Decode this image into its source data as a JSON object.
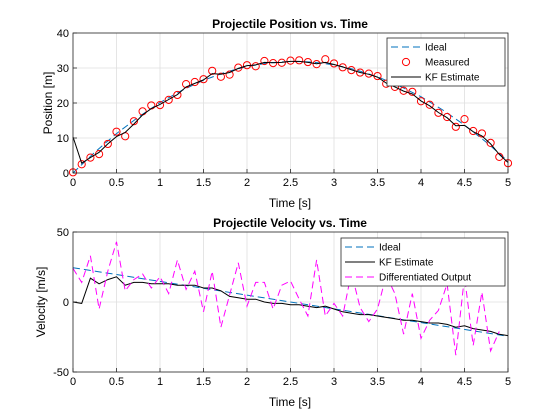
{
  "chart_data": [
    {
      "type": "line",
      "title": "Projectile Position vs. Time",
      "xlabel": "Time [s]",
      "ylabel": "Position [m]",
      "xlim": [
        0,
        5
      ],
      "ylim": [
        0,
        40
      ],
      "xticks": [
        0,
        0.5,
        1,
        1.5,
        2,
        2.5,
        3,
        3.5,
        4,
        4.5,
        5
      ],
      "yticks": [
        0,
        10,
        20,
        30,
        40
      ],
      "grid": true,
      "legend_position": "top-right",
      "series": [
        {
          "name": "Ideal",
          "style": "dashed",
          "color": "#0072BD",
          "x": [
            0,
            0.25,
            0.5,
            0.75,
            1,
            1.25,
            1.5,
            1.75,
            2,
            2.25,
            2.5,
            2.75,
            3,
            3.25,
            3.5,
            3.75,
            4,
            4.25,
            4.5,
            4.75,
            5
          ],
          "y": [
            0,
            5.94,
            11.27,
            15.98,
            20.1,
            23.6,
            26.5,
            28.8,
            30.4,
            31.5,
            31.9,
            31.7,
            30.9,
            29.5,
            27.5,
            24.9,
            21.8,
            18.0,
            13.7,
            8.8,
            3.4
          ]
        },
        {
          "name": "Measured",
          "style": "markers",
          "color": "#FF0000",
          "x": [
            0,
            0.1,
            0.2,
            0.3,
            0.4,
            0.5,
            0.6,
            0.7,
            0.8,
            0.9,
            1.0,
            1.1,
            1.2,
            1.3,
            1.4,
            1.5,
            1.6,
            1.7,
            1.8,
            1.9,
            2.0,
            2.1,
            2.2,
            2.3,
            2.4,
            2.5,
            2.6,
            2.7,
            2.8,
            2.9,
            3.0,
            3.1,
            3.2,
            3.3,
            3.4,
            3.5,
            3.6,
            3.7,
            3.8,
            3.9,
            4.0,
            4.1,
            4.2,
            4.3,
            4.4,
            4.5,
            4.6,
            4.7,
            4.8,
            4.9,
            5.0
          ],
          "y": [
            0.2,
            2.5,
            4.4,
            5.4,
            8.3,
            11.8,
            10.5,
            14.8,
            17.6,
            19.3,
            19.4,
            20.9,
            22.3,
            25.4,
            26.0,
            26.8,
            29.2,
            27.5,
            28.1,
            30.1,
            30.8,
            30.5,
            32.0,
            31.4,
            31.5,
            32.1,
            32.2,
            31.7,
            31.1,
            32.5,
            31.3,
            30.2,
            29.4,
            28.7,
            28.4,
            27.7,
            25.5,
            24.6,
            23.5,
            23.2,
            20.5,
            19.5,
            17.2,
            16.0,
            13.2,
            15.4,
            12.0,
            11.3,
            8.6,
            4.6,
            2.8
          ]
        },
        {
          "name": "KF Estimate",
          "style": "solid",
          "color": "#000000",
          "x": [
            0,
            0.1,
            0.2,
            0.3,
            0.4,
            0.5,
            0.6,
            0.7,
            0.8,
            0.9,
            1.0,
            1.1,
            1.2,
            1.3,
            1.4,
            1.5,
            1.6,
            1.7,
            1.8,
            1.9,
            2.0,
            2.1,
            2.2,
            2.3,
            2.4,
            2.5,
            2.6,
            2.7,
            2.8,
            2.9,
            3.0,
            3.1,
            3.2,
            3.3,
            3.4,
            3.5,
            3.6,
            3.7,
            3.8,
            3.9,
            4.0,
            4.1,
            4.2,
            4.3,
            4.4,
            4.5,
            4.6,
            4.7,
            4.8,
            4.9,
            5.0
          ],
          "y": [
            10.3,
            2.8,
            4.4,
            5.9,
            8.3,
            10.4,
            11.6,
            14.0,
            16.6,
            18.4,
            19.6,
            21.0,
            22.4,
            24.6,
            25.6,
            26.6,
            28.4,
            28.2,
            28.7,
            29.9,
            30.7,
            30.9,
            31.6,
            31.5,
            31.6,
            31.9,
            31.9,
            31.6,
            31.2,
            31.6,
            31.0,
            30.3,
            29.5,
            28.7,
            28.2,
            27.4,
            25.7,
            24.6,
            23.4,
            22.6,
            20.6,
            19.2,
            17.3,
            15.8,
            13.5,
            13.6,
            11.8,
            10.6,
            8.3,
            5.3,
            3.0
          ]
        }
      ]
    },
    {
      "type": "line",
      "title": "Projectile Velocity vs. Time",
      "xlabel": "Time [s]",
      "ylabel": "Velocity [m/s]",
      "xlim": [
        0,
        5
      ],
      "ylim": [
        -50,
        50
      ],
      "xticks": [
        0,
        0.5,
        1,
        1.5,
        2,
        2.5,
        3,
        3.5,
        4,
        4.5,
        5
      ],
      "yticks": [
        -50,
        0,
        50
      ],
      "grid": true,
      "legend_position": "top-right",
      "series": [
        {
          "name": "Ideal",
          "style": "dashed",
          "color": "#0072BD",
          "x": [
            0,
            5
          ],
          "y": [
            24.5,
            -24.5
          ]
        },
        {
          "name": "KF Estimate",
          "style": "solid",
          "color": "#000000",
          "x": [
            0,
            0.1,
            0.2,
            0.3,
            0.4,
            0.5,
            0.6,
            0.7,
            0.8,
            0.9,
            1.0,
            1.1,
            1.2,
            1.3,
            1.4,
            1.5,
            1.6,
            1.7,
            1.8,
            1.9,
            2.0,
            2.1,
            2.2,
            2.3,
            2.4,
            2.5,
            2.6,
            2.7,
            2.8,
            2.9,
            3.0,
            3.1,
            3.2,
            3.3,
            3.4,
            3.5,
            3.6,
            3.7,
            3.8,
            3.9,
            4.0,
            4.1,
            4.2,
            4.3,
            4.4,
            4.5,
            4.6,
            4.7,
            4.8,
            4.9,
            5.0
          ],
          "y": [
            0,
            -1,
            17,
            13,
            16,
            18,
            12,
            14,
            14,
            13,
            13,
            13,
            12,
            12,
            12,
            10,
            10,
            8,
            4,
            3,
            2,
            2,
            0,
            -1,
            -1,
            -2,
            -2,
            -3,
            -4,
            -3,
            -5,
            -7,
            -8,
            -9,
            -9,
            -10,
            -11,
            -12,
            -13,
            -13,
            -14,
            -15,
            -15,
            -16,
            -18,
            -17,
            -19,
            -20,
            -21,
            -23,
            -24
          ]
        },
        {
          "name": "Differentiated Output",
          "style": "dashed",
          "color": "#FF00FF",
          "x": [
            0,
            0.1,
            0.2,
            0.3,
            0.4,
            0.5,
            0.6,
            0.7,
            0.8,
            0.9,
            1.0,
            1.1,
            1.2,
            1.3,
            1.4,
            1.5,
            1.6,
            1.7,
            1.8,
            1.9,
            2.0,
            2.1,
            2.2,
            2.3,
            2.4,
            2.5,
            2.6,
            2.7,
            2.8,
            2.9,
            3.0,
            3.1,
            3.2,
            3.3,
            3.4,
            3.5,
            3.6,
            3.7,
            3.8,
            3.9,
            4.0,
            4.1,
            4.2,
            4.3,
            4.4,
            4.5,
            4.6,
            4.7,
            4.8,
            4.9
          ],
          "y": [
            24,
            14,
            33,
            -5,
            22,
            43,
            8,
            16,
            20,
            10,
            18,
            6,
            30,
            9,
            22,
            -7,
            22,
            -18,
            5,
            28,
            -3,
            14,
            14,
            -5,
            12,
            15,
            2,
            -10,
            30,
            -10,
            -1,
            -10,
            21,
            -4,
            -14,
            -5,
            19,
            6,
            -23,
            6,
            -26,
            -13,
            -6,
            13,
            -38,
            18,
            -31,
            7,
            -35,
            -21
          ]
        }
      ]
    }
  ]
}
